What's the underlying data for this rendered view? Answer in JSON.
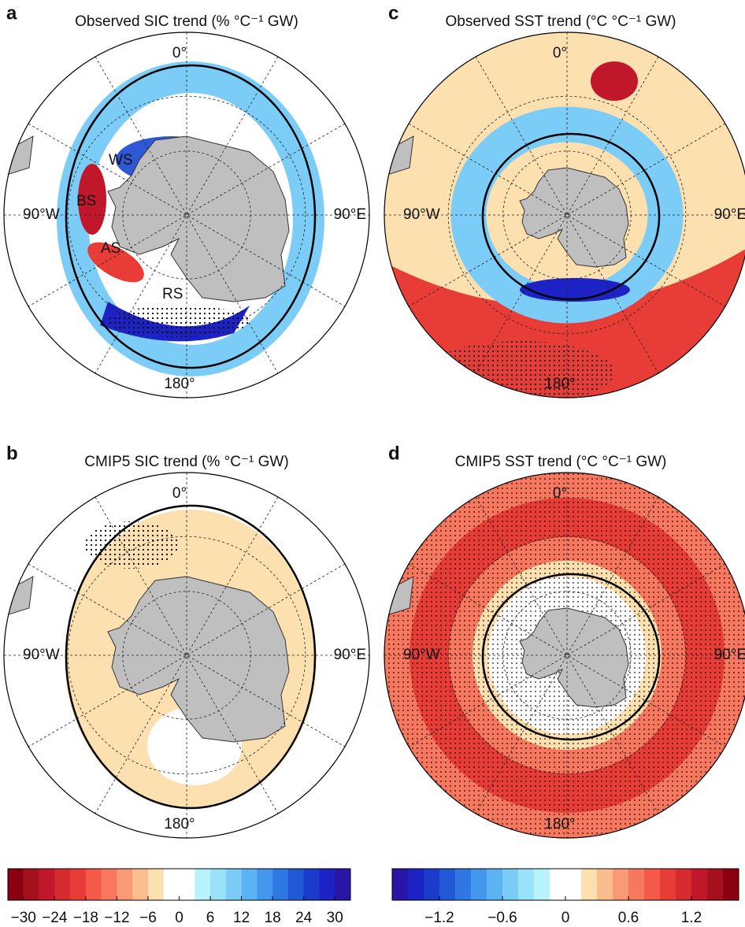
{
  "panels": [
    {
      "letter": "a",
      "title": "Observed SIC trend (% °C⁻¹ GW)",
      "lon_labels": [
        "0°",
        "90°W",
        "90°E",
        "180°"
      ],
      "regions": [
        "WS",
        "BS",
        "AS",
        "RS"
      ]
    },
    {
      "letter": "c",
      "title": "Observed SST trend (°C °C⁻¹ GW)",
      "lon_labels": [
        "0°",
        "90°W",
        "90°E",
        "180°"
      ]
    },
    {
      "letter": "b",
      "title": "CMIP5 SIC trend (% °C⁻¹ GW)",
      "lon_labels": [
        "0°",
        "90°W",
        "90°E",
        "180°"
      ]
    },
    {
      "letter": "d",
      "title": "CMIP5 SST trend (°C °C⁻¹ GW)",
      "lon_labels": [
        "0°",
        "90°W",
        "90°E",
        "180°"
      ]
    }
  ],
  "colorbars": [
    {
      "lim": [
        -33,
        33
      ],
      "ticks": [
        {
          "value": -30,
          "label": "−30"
        },
        {
          "value": -24,
          "label": "−24"
        },
        {
          "value": -18,
          "label": "−18"
        },
        {
          "value": -12,
          "label": "−12"
        },
        {
          "value": -6,
          "label": "−6"
        },
        0,
        6,
        12,
        18,
        24,
        30
      ],
      "colors": [
        "#8b0010",
        "#a5101c",
        "#c0182a",
        "#d52a2e",
        "#e83c36",
        "#f55a48",
        "#f7785e",
        "#f99a74",
        "#fbbc8e",
        "#fde0b0",
        "#ffffff",
        "#ffffff",
        "#b8f2fb",
        "#9ae2fa",
        "#7bcdf7",
        "#5bb4f2",
        "#4397ec",
        "#2e78e3",
        "#2158d6",
        "#1a3ccc",
        "#1c22c4",
        "#2a16a6"
      ]
    },
    {
      "lim": [
        -1.65,
        1.65
      ],
      "ticks": [
        {
          "value": -1.2,
          "label": "−1.2"
        },
        {
          "value": -0.6,
          "label": "−0.6"
        },
        0,
        0.6,
        1.2
      ],
      "colors": [
        "#2a16a6",
        "#1c22c4",
        "#1a3ccc",
        "#2158d6",
        "#2e78e3",
        "#4397ec",
        "#5bb4f2",
        "#7bcdf7",
        "#9ae2fa",
        "#b8f2fb",
        "#ffffff",
        "#ffffff",
        "#fde0b0",
        "#fbbc8e",
        "#f99a74",
        "#f7785e",
        "#f55a48",
        "#e83c36",
        "#d52a2e",
        "#c0182a",
        "#a5101c",
        "#8b0010"
      ]
    }
  ]
}
